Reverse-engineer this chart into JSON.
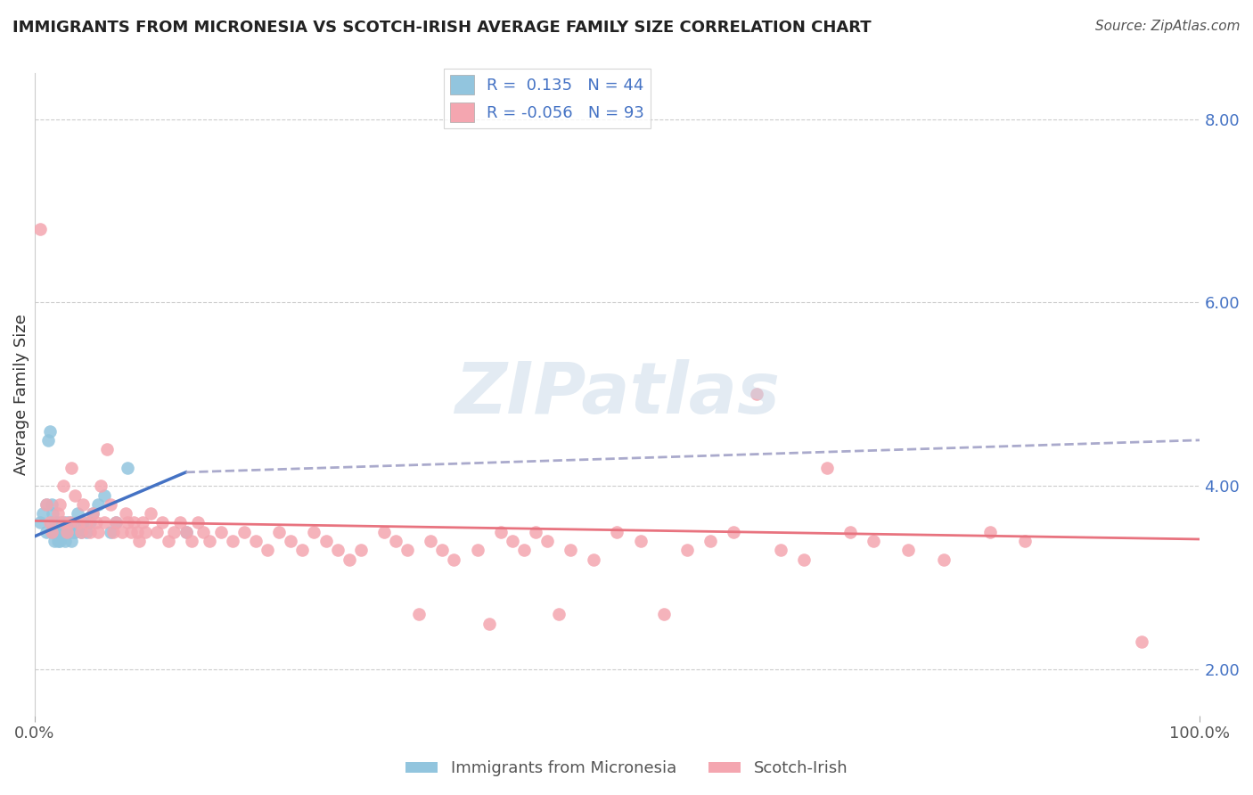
{
  "title": "IMMIGRANTS FROM MICRONESIA VS SCOTCH-IRISH AVERAGE FAMILY SIZE CORRELATION CHART",
  "source": "Source: ZipAtlas.com",
  "ylabel": "Average Family Size",
  "xlim": [
    0,
    1.0
  ],
  "ylim": [
    1.5,
    8.5
  ],
  "right_yticks": [
    2.0,
    4.0,
    6.0,
    8.0
  ],
  "xtick_labels": [
    "0.0%",
    "100.0%"
  ],
  "legend_label1": "Immigrants from Micronesia",
  "legend_label2": "Scotch-Irish",
  "R1": 0.135,
  "N1": 44,
  "R2": -0.056,
  "N2": 93,
  "color_blue": "#92C5DE",
  "color_pink": "#F4A6B0",
  "color_blue_text": "#4472C4",
  "color_pink_line": "#E8737F",
  "trendline1_color": "#4472C4",
  "trendline1_dashed_color": "#AAAACC",
  "watermark": "ZIPatlas",
  "blue_x": [
    0.005,
    0.007,
    0.01,
    0.01,
    0.012,
    0.013,
    0.014,
    0.015,
    0.015,
    0.016,
    0.017,
    0.018,
    0.018,
    0.019,
    0.02,
    0.02,
    0.021,
    0.022,
    0.022,
    0.023,
    0.024,
    0.025,
    0.025,
    0.026,
    0.027,
    0.028,
    0.03,
    0.031,
    0.032,
    0.033,
    0.035,
    0.036,
    0.037,
    0.04,
    0.042,
    0.045,
    0.048,
    0.05,
    0.055,
    0.06,
    0.065,
    0.07,
    0.08,
    0.13
  ],
  "blue_y": [
    3.6,
    3.7,
    3.5,
    3.8,
    4.5,
    4.6,
    3.6,
    3.5,
    3.8,
    3.7,
    3.4,
    3.6,
    3.5,
    3.5,
    3.4,
    3.6,
    3.5,
    3.5,
    3.4,
    3.6,
    3.5,
    3.5,
    3.6,
    3.4,
    3.5,
    3.6,
    3.5,
    3.6,
    3.4,
    3.5,
    3.5,
    3.6,
    3.7,
    3.5,
    3.6,
    3.5,
    3.6,
    3.7,
    3.8,
    3.9,
    3.5,
    3.6,
    4.2,
    3.5
  ],
  "pink_x": [
    0.005,
    0.01,
    0.013,
    0.015,
    0.02,
    0.022,
    0.025,
    0.025,
    0.028,
    0.03,
    0.032,
    0.035,
    0.038,
    0.04,
    0.042,
    0.045,
    0.048,
    0.05,
    0.053,
    0.055,
    0.057,
    0.06,
    0.062,
    0.065,
    0.068,
    0.07,
    0.075,
    0.078,
    0.08,
    0.083,
    0.085,
    0.088,
    0.09,
    0.093,
    0.095,
    0.1,
    0.105,
    0.11,
    0.115,
    0.12,
    0.125,
    0.13,
    0.135,
    0.14,
    0.145,
    0.15,
    0.16,
    0.17,
    0.18,
    0.19,
    0.2,
    0.21,
    0.22,
    0.23,
    0.24,
    0.25,
    0.26,
    0.27,
    0.28,
    0.3,
    0.31,
    0.32,
    0.33,
    0.34,
    0.35,
    0.36,
    0.38,
    0.39,
    0.4,
    0.41,
    0.42,
    0.43,
    0.44,
    0.45,
    0.46,
    0.48,
    0.5,
    0.52,
    0.54,
    0.56,
    0.58,
    0.6,
    0.62,
    0.64,
    0.66,
    0.68,
    0.7,
    0.72,
    0.75,
    0.78,
    0.82,
    0.85,
    0.95
  ],
  "pink_y": [
    6.8,
    3.8,
    3.6,
    3.5,
    3.7,
    3.8,
    3.6,
    4.0,
    3.5,
    3.6,
    4.2,
    3.9,
    3.6,
    3.5,
    3.8,
    3.6,
    3.5,
    3.7,
    3.6,
    3.5,
    4.0,
    3.6,
    4.4,
    3.8,
    3.5,
    3.6,
    3.5,
    3.7,
    3.6,
    3.5,
    3.6,
    3.5,
    3.4,
    3.6,
    3.5,
    3.7,
    3.5,
    3.6,
    3.4,
    3.5,
    3.6,
    3.5,
    3.4,
    3.6,
    3.5,
    3.4,
    3.5,
    3.4,
    3.5,
    3.4,
    3.3,
    3.5,
    3.4,
    3.3,
    3.5,
    3.4,
    3.3,
    3.2,
    3.3,
    3.5,
    3.4,
    3.3,
    2.6,
    3.4,
    3.3,
    3.2,
    3.3,
    2.5,
    3.5,
    3.4,
    3.3,
    3.5,
    3.4,
    2.6,
    3.3,
    3.2,
    3.5,
    3.4,
    2.6,
    3.3,
    3.4,
    3.5,
    5.0,
    3.3,
    3.2,
    4.2,
    3.5,
    3.4,
    3.3,
    3.2,
    3.5,
    3.4,
    2.3
  ],
  "blue_trend_x0": 0.0,
  "blue_trend_y0": 3.45,
  "blue_trend_x1": 0.13,
  "blue_trend_y1": 4.15,
  "blue_trend_xend": 1.0,
  "blue_trend_yend": 4.5,
  "pink_trend_x0": 0.0,
  "pink_trend_y0": 3.62,
  "pink_trend_x1": 1.0,
  "pink_trend_y1": 3.42
}
